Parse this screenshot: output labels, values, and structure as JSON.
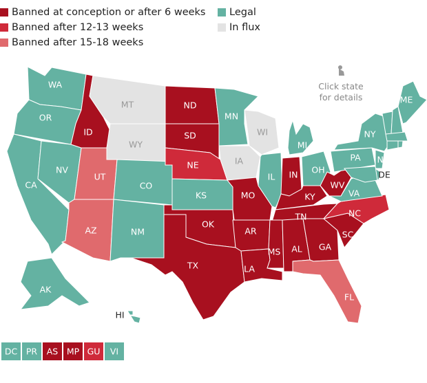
{
  "legend": [
    {
      "label": "Banned at conception or after 6 weeks",
      "color": "#a8101f"
    },
    {
      "label": "Banned after 12-13 weeks",
      "color": "#cf2a3a"
    },
    {
      "label": "Banned after 15-18 weeks",
      "color": "#e06a6d"
    },
    {
      "label": "Legal",
      "color": "#64b2a2"
    },
    {
      "label": "In flux",
      "color": "#e3e3e3"
    }
  ],
  "hint": "Click state for details",
  "states": [
    {
      "abbr": "WA",
      "color": "#64b2a2"
    },
    {
      "abbr": "OR",
      "color": "#64b2a2"
    },
    {
      "abbr": "CA",
      "color": "#64b2a2"
    },
    {
      "abbr": "NV",
      "color": "#64b2a2"
    },
    {
      "abbr": "ID",
      "color": "#a8101f"
    },
    {
      "abbr": "MT",
      "color": "#e3e3e3"
    },
    {
      "abbr": "WY",
      "color": "#e3e3e3"
    },
    {
      "abbr": "UT",
      "color": "#e06a6d"
    },
    {
      "abbr": "AZ",
      "color": "#e06a6d"
    },
    {
      "abbr": "CO",
      "color": "#64b2a2"
    },
    {
      "abbr": "NM",
      "color": "#64b2a2"
    },
    {
      "abbr": "ND",
      "color": "#a8101f"
    },
    {
      "abbr": "SD",
      "color": "#a8101f"
    },
    {
      "abbr": "NE",
      "color": "#cf2a3a"
    },
    {
      "abbr": "KS",
      "color": "#64b2a2"
    },
    {
      "abbr": "OK",
      "color": "#a8101f"
    },
    {
      "abbr": "TX",
      "color": "#a8101f"
    },
    {
      "abbr": "MN",
      "color": "#64b2a2"
    },
    {
      "abbr": "IA",
      "color": "#e3e3e3"
    },
    {
      "abbr": "WI",
      "color": "#e3e3e3"
    },
    {
      "abbr": "MO",
      "color": "#a8101f"
    },
    {
      "abbr": "AR",
      "color": "#a8101f"
    },
    {
      "abbr": "LA",
      "color": "#a8101f"
    },
    {
      "abbr": "IL",
      "color": "#64b2a2"
    },
    {
      "abbr": "IN",
      "color": "#a8101f"
    },
    {
      "abbr": "MI",
      "color": "#64b2a2"
    },
    {
      "abbr": "OH",
      "color": "#64b2a2"
    },
    {
      "abbr": "KY",
      "color": "#a8101f"
    },
    {
      "abbr": "TN",
      "color": "#a8101f"
    },
    {
      "abbr": "MS",
      "color": "#a8101f"
    },
    {
      "abbr": "AL",
      "color": "#a8101f"
    },
    {
      "abbr": "GA",
      "color": "#a8101f"
    },
    {
      "abbr": "FL",
      "color": "#e06a6d"
    },
    {
      "abbr": "SC",
      "color": "#a8101f"
    },
    {
      "abbr": "NC",
      "color": "#cf2a3a"
    },
    {
      "abbr": "VA",
      "color": "#64b2a2"
    },
    {
      "abbr": "WV",
      "color": "#a8101f"
    },
    {
      "abbr": "PA",
      "color": "#64b2a2"
    },
    {
      "abbr": "NY",
      "color": "#64b2a2"
    },
    {
      "abbr": "NJ",
      "color": "#64b2a2"
    },
    {
      "abbr": "DE",
      "color": "#64b2a2"
    },
    {
      "abbr": "ME",
      "color": "#64b2a2"
    },
    {
      "abbr": "AK",
      "color": "#64b2a2"
    },
    {
      "abbr": "HI",
      "color": "#64b2a2"
    },
    {
      "abbr": null,
      "color": "#64b2a2"
    },
    {
      "abbr": null,
      "color": "#64b2a2"
    },
    {
      "abbr": null,
      "color": "#64b2a2"
    },
    {
      "abbr": null,
      "color": "#64b2a2"
    },
    {
      "abbr": null,
      "color": "#64b2a2"
    },
    {
      "abbr": null,
      "color": "#64b2a2"
    }
  ],
  "territories": [
    {
      "abbr": "DC",
      "color": "#64b2a2"
    },
    {
      "abbr": "PR",
      "color": "#64b2a2"
    },
    {
      "abbr": "AS",
      "color": "#a8101f"
    },
    {
      "abbr": "MP",
      "color": "#a8101f"
    },
    {
      "abbr": "GU",
      "color": "#cf2a3a"
    },
    {
      "abbr": "VI",
      "color": "#64b2a2"
    }
  ]
}
